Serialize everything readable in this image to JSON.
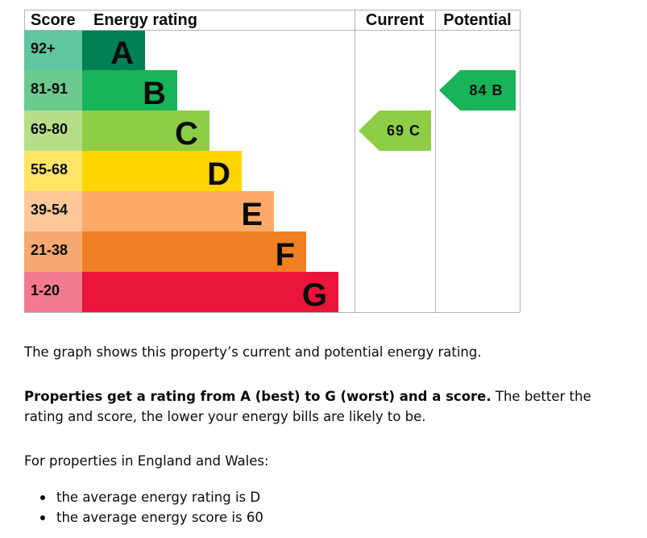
{
  "chart_data": {
    "type": "bar",
    "headers": {
      "score": "Score",
      "rating": "Energy rating",
      "current": "Current",
      "potential": "Potential"
    },
    "bands": [
      {
        "letter": "A",
        "range": "92+",
        "color": "#008054",
        "score_color": "#5fc6a0"
      },
      {
        "letter": "B",
        "range": "81-91",
        "color": "#19b459",
        "score_color": "#6dca8f"
      },
      {
        "letter": "C",
        "range": "69-80",
        "color": "#8dce46",
        "score_color": "#b6de88"
      },
      {
        "letter": "D",
        "range": "55-68",
        "color": "#ffd500",
        "score_color": "#ffe566"
      },
      {
        "letter": "E",
        "range": "39-54",
        "color": "#fcaa65",
        "score_color": "#fdc899"
      },
      {
        "letter": "F",
        "range": "21-38",
        "color": "#ef8023",
        "score_color": "#f5a870"
      },
      {
        "letter": "G",
        "range": "1-20",
        "color": "#e9153b",
        "score_color": "#f27a8f"
      }
    ],
    "current": {
      "score": 69,
      "letter": "C",
      "label": "69 C",
      "color": "#8dce46"
    },
    "potential": {
      "score": 84,
      "letter": "B",
      "label": "84 B",
      "color": "#19b459"
    }
  },
  "text": {
    "intro": "The graph shows this property’s current and potential energy rating.",
    "para_bold": "Properties get a rating from A (best) to G (worst) and a score.",
    "para_rest": " The better the rating and score, the lower your energy bills are likely to be.",
    "region": "For properties in England and Wales:",
    "bullets": [
      "the average energy rating is D",
      "the average energy score is 60"
    ]
  },
  "colors": {
    "grid": "#b1b4b6",
    "text": "#0b0c0c"
  }
}
